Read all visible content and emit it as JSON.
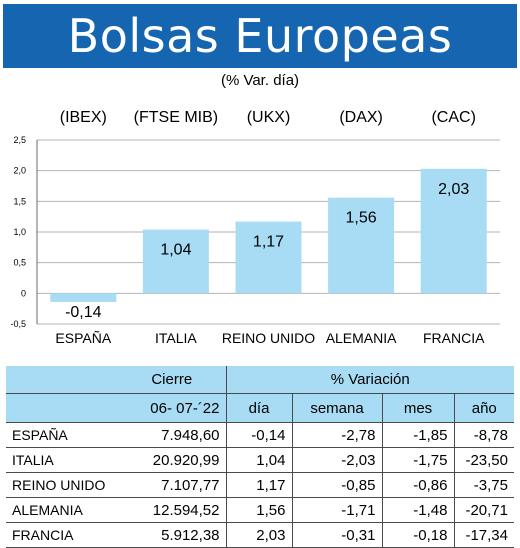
{
  "header": {
    "title": "Bolsas Europeas",
    "subtitle": "(% Var. día)"
  },
  "chart_data": {
    "type": "bar",
    "index_labels": [
      "(IBEX)",
      "(FTSE MIB)",
      "(UKX)",
      "(DAX)",
      "(CAC)"
    ],
    "categories": [
      "ESPAÑA",
      "ITALIA",
      "REINO UNIDO",
      "ALEMANIA",
      "FRANCIA"
    ],
    "values": [
      -0.14,
      1.04,
      1.17,
      1.56,
      2.03
    ],
    "value_labels": [
      "-0,14",
      "1,04",
      "1,17",
      "1,56",
      "2,03"
    ],
    "yticks": [
      2.5,
      2.0,
      1.5,
      1.0,
      0.5,
      0,
      -0.5
    ],
    "ytick_labels": [
      "2,5",
      "2,0",
      "1,5",
      "1,0",
      "0,5",
      "0",
      "-0,5"
    ],
    "ylim": [
      -0.5,
      2.5
    ],
    "grid": true,
    "bar_color": "#a8dcf4"
  },
  "table": {
    "group_headers": {
      "cierre": "Cierre",
      "variacion": "% Variación"
    },
    "sub_headers": {
      "date": "06- 07-´22",
      "dia": "día",
      "semana": "semana",
      "mes": "mes",
      "ano": "año"
    },
    "rows": [
      {
        "country": "ESPAÑA",
        "cierre": "7.948,60",
        "dia": "-0,14",
        "semana": "-2,78",
        "mes": "-1,85",
        "ano": "-8,78"
      },
      {
        "country": "ITALIA",
        "cierre": "20.920,99",
        "dia": "1,04",
        "semana": "-2,03",
        "mes": "-1,75",
        "ano": "-23,50"
      },
      {
        "country": "REINO UNIDO",
        "cierre": "7.107,77",
        "dia": "1,17",
        "semana": "-0,85",
        "mes": "-0,86",
        "ano": "-3,75"
      },
      {
        "country": "ALEMANIA",
        "cierre": "12.594,52",
        "dia": "1,56",
        "semana": "-1,71",
        "mes": "-1,48",
        "ano": "-20,71"
      },
      {
        "country": "FRANCIA",
        "cierre": "5.912,38",
        "dia": "2,03",
        "semana": "-0,31",
        "mes": "-0,18",
        "ano": "-17,34"
      }
    ]
  }
}
